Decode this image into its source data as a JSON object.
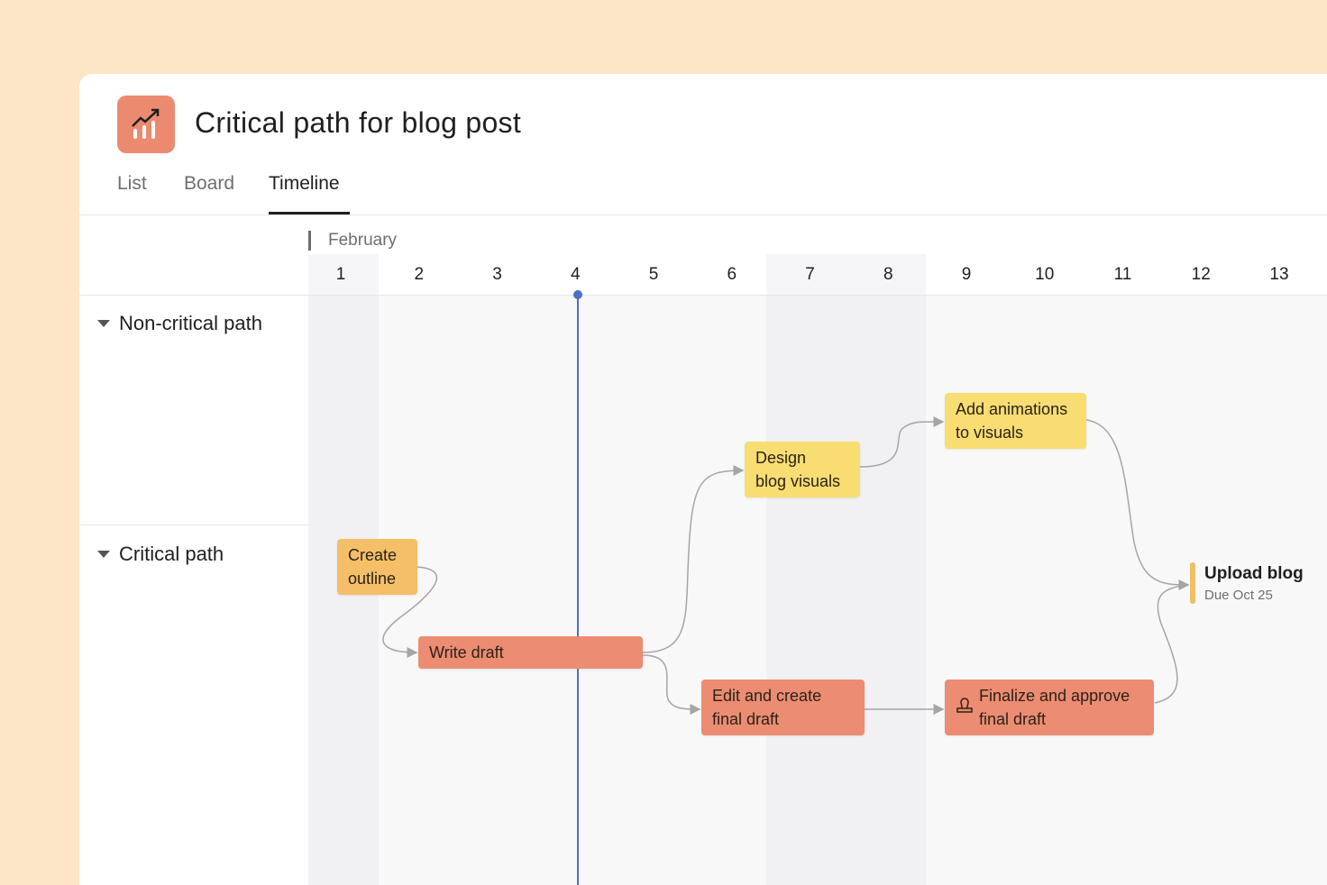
{
  "project": {
    "title": "Critical path for blog post",
    "icon": "chart-trend-icon",
    "icon_color": "#ec8a70"
  },
  "tabs": [
    {
      "label": "List"
    },
    {
      "label": "Board"
    },
    {
      "label": "Timeline",
      "active": true
    }
  ],
  "timeline": {
    "month": "February",
    "days": [
      "1",
      "2",
      "3",
      "4",
      "5",
      "6",
      "7",
      "8",
      "9",
      "10",
      "11",
      "12",
      "13"
    ],
    "today": "4"
  },
  "sections": [
    {
      "label": "Non-critical path"
    },
    {
      "label": "Critical path"
    }
  ],
  "tasks": [
    {
      "name": "Create outline",
      "line1": "Create",
      "line2": "outline",
      "color": "#f5bf68"
    },
    {
      "name": "Write draft",
      "line1": "Write draft",
      "color": "#ec8c72"
    },
    {
      "name": "Design blog visuals",
      "line1": "Design",
      "line2": "blog visuals",
      "color": "#f8dd72"
    },
    {
      "name": "Add animations to visuals",
      "line1": "Add animations",
      "line2": "to visuals",
      "color": "#f8dd72"
    },
    {
      "name": "Edit and create final draft",
      "line1": "Edit and create",
      "line2": "final draft",
      "color": "#ec8c72"
    },
    {
      "name": "Finalize and approve final draft",
      "line1": "Finalize and approve",
      "line2": "final draft",
      "color": "#ec8c72",
      "icon": "approval-stamp-icon"
    }
  ],
  "milestone": {
    "title": "Upload blog",
    "due": "Due Oct 25",
    "color": "#f2bd63"
  },
  "colors": {
    "today_line": "#4a6fc8",
    "background": "#fde5c8"
  }
}
